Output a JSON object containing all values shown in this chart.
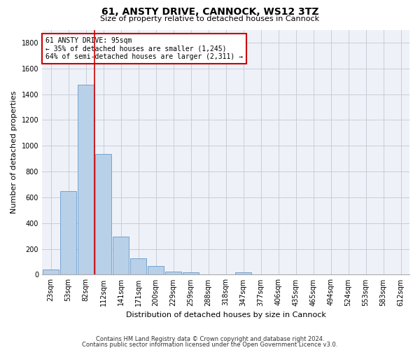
{
  "title": "61, ANSTY DRIVE, CANNOCK, WS12 3TZ",
  "subtitle": "Size of property relative to detached houses in Cannock",
  "xlabel": "Distribution of detached houses by size in Cannock",
  "ylabel": "Number of detached properties",
  "categories": [
    "23sqm",
    "53sqm",
    "82sqm",
    "112sqm",
    "141sqm",
    "171sqm",
    "200sqm",
    "229sqm",
    "259sqm",
    "288sqm",
    "318sqm",
    "347sqm",
    "377sqm",
    "406sqm",
    "435sqm",
    "465sqm",
    "494sqm",
    "524sqm",
    "553sqm",
    "583sqm",
    "612sqm"
  ],
  "values": [
    38,
    650,
    1475,
    935,
    295,
    125,
    65,
    25,
    18,
    0,
    0,
    18,
    0,
    0,
    0,
    0,
    0,
    0,
    0,
    0,
    0
  ],
  "bar_color": "#b8d0e8",
  "bar_edge_color": "#6699cc",
  "vline_color": "#cc0000",
  "annotation_text": "61 ANSTY DRIVE: 95sqm\n← 35% of detached houses are smaller (1,245)\n64% of semi-detached houses are larger (2,311) →",
  "annotation_box_color": "#cc0000",
  "ylim": [
    0,
    1900
  ],
  "yticks": [
    0,
    200,
    400,
    600,
    800,
    1000,
    1200,
    1400,
    1600,
    1800
  ],
  "footer_line1": "Contains HM Land Registry data © Crown copyright and database right 2024.",
  "footer_line2": "Contains public sector information licensed under the Open Government Licence v3.0.",
  "bg_color": "#eef2f8",
  "grid_color": "#c8ccd8",
  "title_fontsize": 10,
  "subtitle_fontsize": 8,
  "ylabel_fontsize": 8,
  "xlabel_fontsize": 8,
  "tick_fontsize": 7,
  "annotation_fontsize": 7
}
